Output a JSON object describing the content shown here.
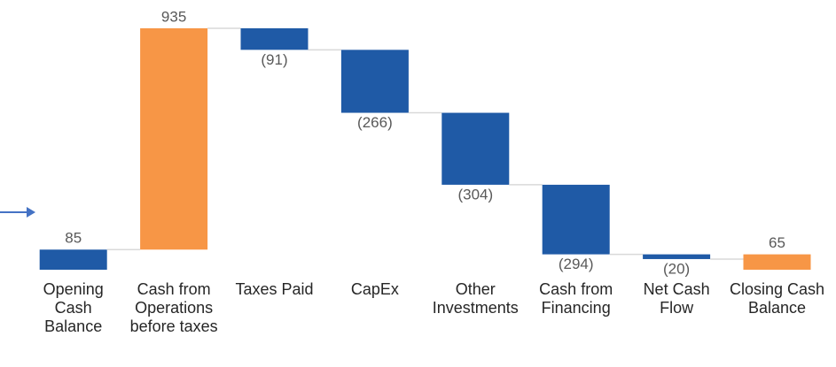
{
  "chart_data": {
    "type": "waterfall",
    "categories": [
      "Opening Cash Balance",
      "Cash from Operations before taxes",
      "Taxes Paid",
      "CapEx",
      "Other Investments",
      "Cash from Financing",
      "Net Cash Flow",
      "Closing Cash Balance"
    ],
    "values": [
      85,
      935,
      -91,
      -266,
      -304,
      -294,
      -20,
      65
    ],
    "value_labels": [
      "85",
      "935",
      "(91)",
      "(266)",
      "(304)",
      "(294)",
      "(20)",
      "65"
    ],
    "is_total": [
      true,
      false,
      false,
      false,
      false,
      false,
      false,
      true
    ],
    "colors": [
      "#1f5aa6",
      "#f79646",
      "#1f5aa6",
      "#1f5aa6",
      "#1f5aa6",
      "#1f5aa6",
      "#1f5aa6",
      "#f79646"
    ],
    "ylim": [
      0,
      1020
    ]
  }
}
